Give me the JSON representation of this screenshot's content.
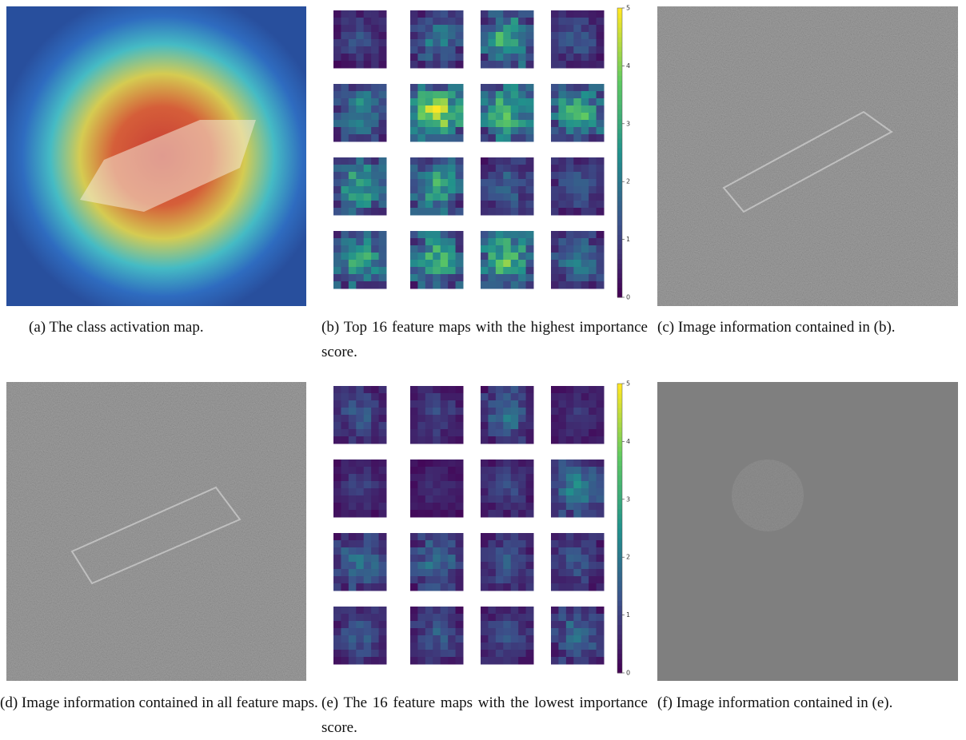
{
  "panels": [
    {
      "caption": "(a) The class activation map."
    },
    {
      "caption": "(b) Top 16 feature maps with the highest importance score.",
      "colorbar_ticks": [
        0,
        1,
        2,
        3,
        4,
        5
      ]
    },
    {
      "caption": "(c) Image information contained in (b)."
    },
    {
      "caption": "(d) Image information contained in all feature maps."
    },
    {
      "caption": "(e) The 16 feature maps with the lowest importance score.",
      "colorbar_ticks": [
        0,
        1,
        2,
        3,
        4,
        5
      ]
    },
    {
      "caption": "(f) Image information contained in (e)."
    }
  ]
}
